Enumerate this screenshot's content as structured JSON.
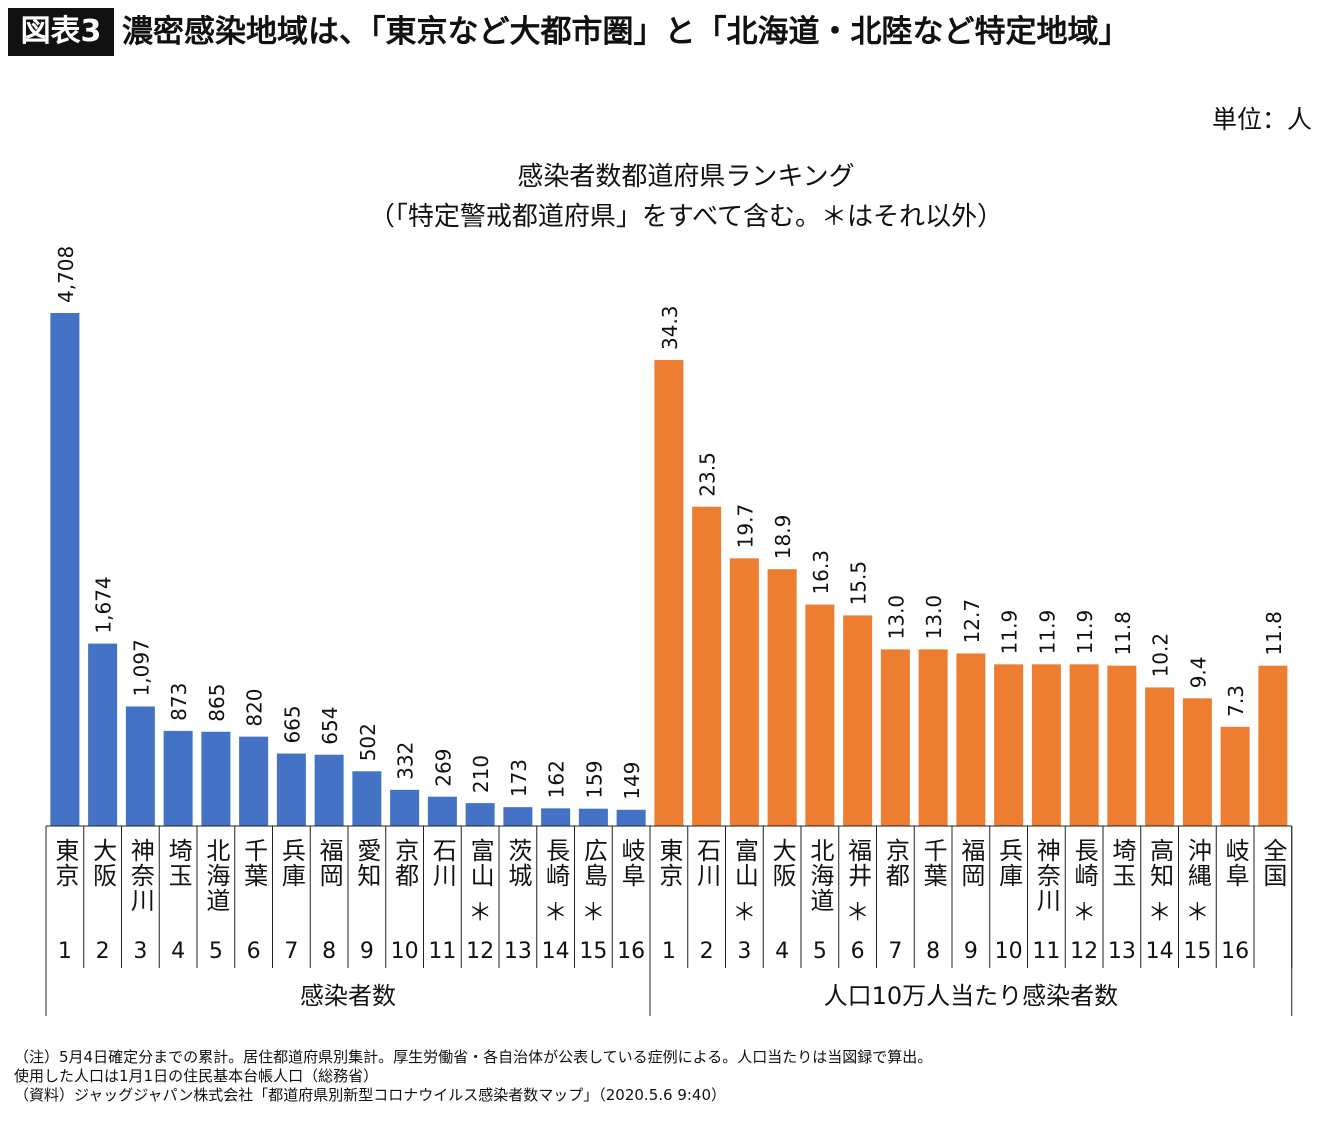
{
  "header": {
    "badge": "図表3",
    "title": "濃密感染地域は、「東京など大都市圏」と「北海道・北陸など特定地域」"
  },
  "unit": "単位：人",
  "notes": [
    "（注）5月4日確定分までの累計。居住都道府県別集計。厚生労働省・各自治体が公表している症例による。人口当たりは当図録で算出。",
    "使用した人口は1月1日の住民基本台帳人口（総務省）",
    "（資料）ジャッグジャパン株式会社「都道府県別新型コロナウイルス感染者数マップ」（2020.5.6 9:40）"
  ],
  "chart_data": {
    "type": "bar",
    "title": "感染者数都道府県ランキング",
    "subtitle": "（「特定警戒都道府県」をすべて含む。＊はそれ以外）",
    "marker": "＊",
    "colors": {
      "left": "#4472C4",
      "right": "#ED7D31"
    },
    "groups": [
      {
        "name": "感染者数",
        "ylim": [
          0,
          4708
        ],
        "bars": [
          {
            "label": "東京",
            "rank": "1",
            "value": 4708,
            "text": "4,708",
            "star": false
          },
          {
            "label": "大阪",
            "rank": "2",
            "value": 1674,
            "text": "1,674",
            "star": false
          },
          {
            "label": "神奈川",
            "rank": "3",
            "value": 1097,
            "text": "1,097",
            "star": false
          },
          {
            "label": "埼玉",
            "rank": "4",
            "value": 873,
            "text": "873",
            "star": false
          },
          {
            "label": "北海道",
            "rank": "5",
            "value": 865,
            "text": "865",
            "star": false
          },
          {
            "label": "千葉",
            "rank": "6",
            "value": 820,
            "text": "820",
            "star": false
          },
          {
            "label": "兵庫",
            "rank": "7",
            "value": 665,
            "text": "665",
            "star": false
          },
          {
            "label": "福岡",
            "rank": "8",
            "value": 654,
            "text": "654",
            "star": false
          },
          {
            "label": "愛知",
            "rank": "9",
            "value": 502,
            "text": "502",
            "star": false
          },
          {
            "label": "京都",
            "rank": "10",
            "value": 332,
            "text": "332",
            "star": false
          },
          {
            "label": "石川",
            "rank": "11",
            "value": 269,
            "text": "269",
            "star": false
          },
          {
            "label": "富山",
            "rank": "12",
            "value": 210,
            "text": "210",
            "star": true
          },
          {
            "label": "茨城",
            "rank": "13",
            "value": 173,
            "text": "173",
            "star": false
          },
          {
            "label": "長崎",
            "rank": "14",
            "value": 162,
            "text": "162",
            "star": true
          },
          {
            "label": "広島",
            "rank": "15",
            "value": 159,
            "text": "159",
            "star": true
          },
          {
            "label": "岐阜",
            "rank": "16",
            "value": 149,
            "text": "149",
            "star": false
          }
        ]
      },
      {
        "name": "人口10万人当たり感染者数",
        "ylim": [
          0,
          34.3
        ],
        "bars": [
          {
            "label": "東京",
            "rank": "1",
            "value": 34.3,
            "text": "34.3",
            "star": false
          },
          {
            "label": "石川",
            "rank": "2",
            "value": 23.5,
            "text": "23.5",
            "star": false
          },
          {
            "label": "富山",
            "rank": "3",
            "value": 19.7,
            "text": "19.7",
            "star": true
          },
          {
            "label": "大阪",
            "rank": "4",
            "value": 18.9,
            "text": "18.9",
            "star": false
          },
          {
            "label": "北海道",
            "rank": "5",
            "value": 16.3,
            "text": "16.3",
            "star": false
          },
          {
            "label": "福井",
            "rank": "6",
            "value": 15.5,
            "text": "15.5",
            "star": true
          },
          {
            "label": "京都",
            "rank": "7",
            "value": 13.0,
            "text": "13.0",
            "star": false
          },
          {
            "label": "千葉",
            "rank": "8",
            "value": 13.0,
            "text": "13.0",
            "star": false
          },
          {
            "label": "福岡",
            "rank": "9",
            "value": 12.7,
            "text": "12.7",
            "star": false
          },
          {
            "label": "兵庫",
            "rank": "10",
            "value": 11.9,
            "text": "11.9",
            "star": false
          },
          {
            "label": "神奈川",
            "rank": "11",
            "value": 11.9,
            "text": "11.9",
            "star": false
          },
          {
            "label": "長崎",
            "rank": "12",
            "value": 11.9,
            "text": "11.9",
            "star": true
          },
          {
            "label": "埼玉",
            "rank": "13",
            "value": 11.8,
            "text": "11.8",
            "star": false
          },
          {
            "label": "高知",
            "rank": "14",
            "value": 10.2,
            "text": "10.2",
            "star": true
          },
          {
            "label": "沖縄",
            "rank": "15",
            "value": 9.4,
            "text": "9.4",
            "star": true
          },
          {
            "label": "岐阜",
            "rank": "16",
            "value": 7.3,
            "text": "7.3",
            "star": false
          },
          {
            "label": "全国",
            "rank": "",
            "value": 11.8,
            "text": "11.8",
            "star": false
          }
        ]
      }
    ]
  }
}
